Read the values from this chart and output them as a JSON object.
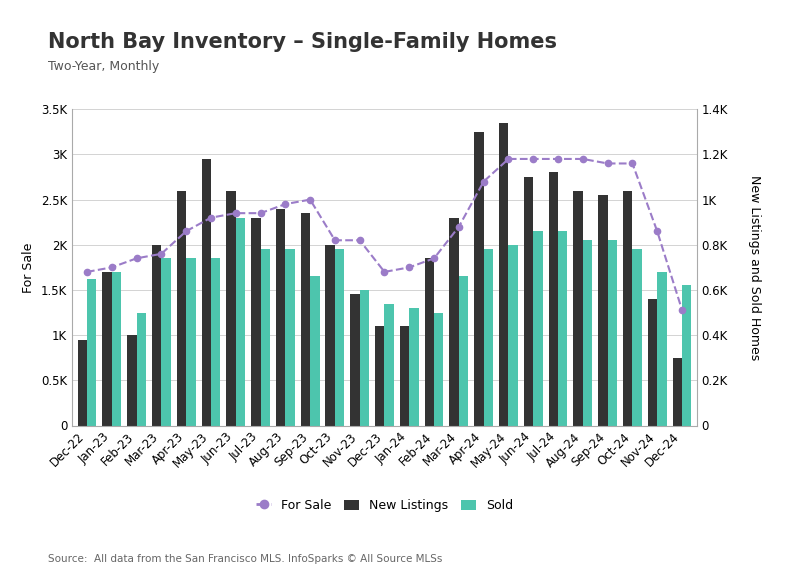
{
  "title": "North Bay Inventory – Single-Family Homes",
  "subtitle": "Two-Year, Monthly",
  "ylabel_left": "For Sale",
  "ylabel_right": "New Listings and Sold Homes",
  "source": "Source:  All data from the San Francisco MLS. InfoSparks © All Source MLSs",
  "categories": [
    "Dec-22",
    "Jan-23",
    "Feb-23",
    "Mar-23",
    "Apr-23",
    "May-23",
    "Jun-23",
    "Jul-23",
    "Aug-23",
    "Sep-23",
    "Oct-23",
    "Nov-23",
    "Dec-23",
    "Jan-24",
    "Feb-24",
    "Mar-24",
    "Apr-24",
    "May-24",
    "Jun-24",
    "Jul-24",
    "Aug-24",
    "Sep-24",
    "Oct-24",
    "Nov-24",
    "Dec-24"
  ],
  "for_sale": [
    1700,
    1750,
    1850,
    1900,
    2150,
    2300,
    2350,
    2350,
    2450,
    2500,
    2050,
    2050,
    1700,
    1750,
    1850,
    2200,
    2700,
    2950,
    2950,
    2950,
    2950,
    2900,
    2900,
    2150,
    1280
  ],
  "new_listings": [
    950,
    1700,
    1000,
    2000,
    2600,
    2950,
    2600,
    2300,
    2400,
    2350,
    2000,
    1450,
    1100,
    1100,
    1850,
    2300,
    3250,
    3350,
    2750,
    2800,
    2600,
    2550,
    2600,
    1400,
    750
  ],
  "sold": [
    1620,
    1700,
    1250,
    1850,
    1850,
    1850,
    2300,
    1950,
    1950,
    1650,
    1950,
    1500,
    1350,
    1300,
    1250,
    1650,
    1950,
    2000,
    2150,
    2150,
    2050,
    2050,
    1950,
    1700,
    1550
  ],
  "bar_color_new": "#333333",
  "bar_color_sold": "#4dc5ad",
  "line_color_forsale": "#9b7cc8",
  "line_marker": "o",
  "background_color": "#ffffff",
  "grid_color": "#cccccc",
  "left_ylim": [
    0,
    3500
  ],
  "right_ylim": [
    0,
    1400
  ],
  "left_yticks": [
    0,
    500,
    1000,
    1500,
    2000,
    2500,
    3000,
    3500
  ],
  "left_yticklabels": [
    "0",
    "0.5K",
    "1K",
    "1.5K",
    "2K",
    "2.5K",
    "3K",
    "3.5K"
  ],
  "right_yticks": [
    0,
    200,
    400,
    600,
    800,
    1000,
    1200,
    1400
  ],
  "right_yticklabels": [
    "0",
    "0.2K",
    "0.4K",
    "0.6K",
    "0.8K",
    "1K",
    "1.2K",
    "1.4K"
  ],
  "legend_labels": [
    "For Sale",
    "New Listings",
    "Sold"
  ],
  "title_fontsize": 15,
  "subtitle_fontsize": 9,
  "axis_fontsize": 9,
  "tick_fontsize": 8.5,
  "legend_fontsize": 9,
  "source_fontsize": 7.5
}
